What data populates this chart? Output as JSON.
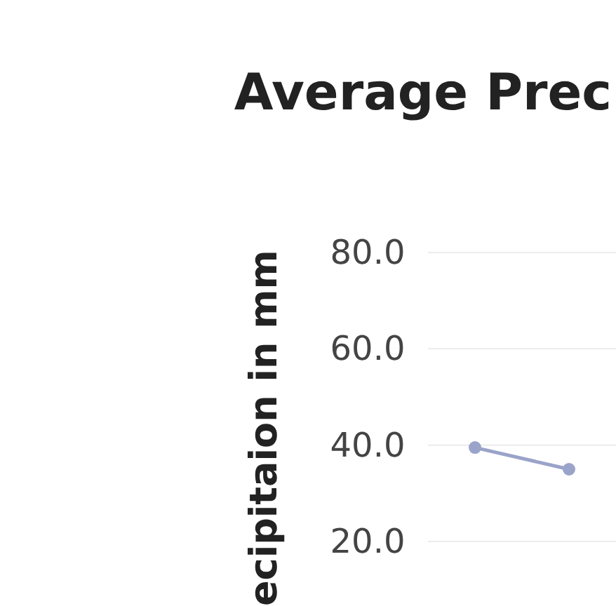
{
  "chart_data": {
    "type": "line",
    "title": "Average Prec",
    "ylabel": "ecipitaion in mm",
    "categories": [
      null,
      null
    ],
    "series": [
      {
        "color": "#9aa3c9",
        "values": [
          39.5,
          35.0
        ]
      }
    ],
    "ylim": [
      20,
      80
    ],
    "yticks": [
      {
        "value": 20,
        "label": "20.0"
      },
      {
        "value": 40,
        "label": "40.0"
      },
      {
        "value": 60,
        "label": "60.0"
      },
      {
        "value": 80,
        "label": "80.0"
      }
    ],
    "grid": "y",
    "marker": "circle"
  }
}
